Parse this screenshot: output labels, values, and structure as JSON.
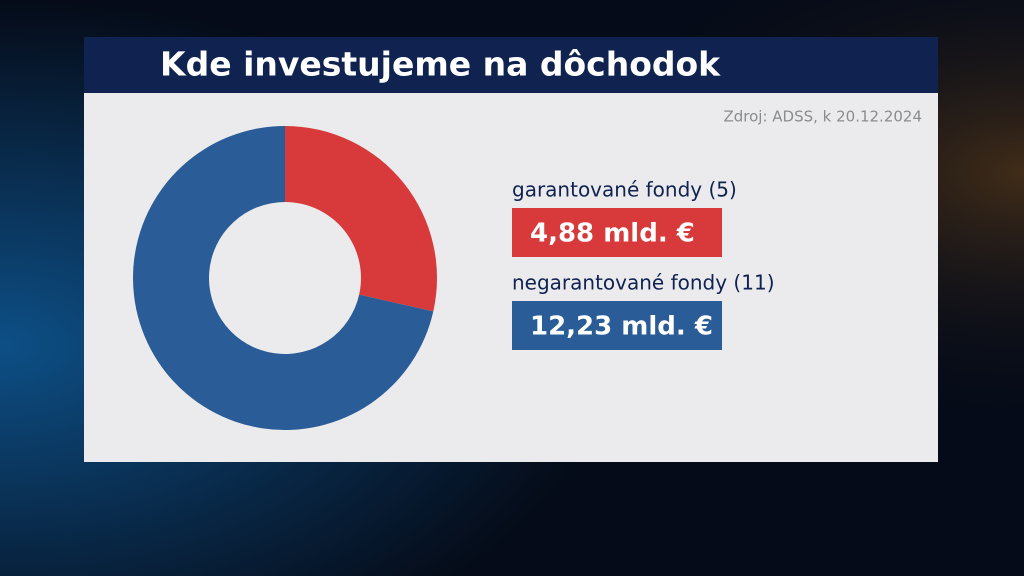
{
  "chart_data": {
    "type": "donut",
    "title": "Kde investujeme na dôchodok",
    "source": "Zdroj: ADSS, k 20.12.2024",
    "categories": [
      "garantované fondy (5)",
      "negarantované fondy (11)"
    ],
    "values": [
      4.88,
      12.23
    ],
    "value_labels": [
      "4,88 mld. €",
      "12,23 mld. €"
    ],
    "colors": [
      "#d8393a",
      "#2a5c97"
    ]
  }
}
